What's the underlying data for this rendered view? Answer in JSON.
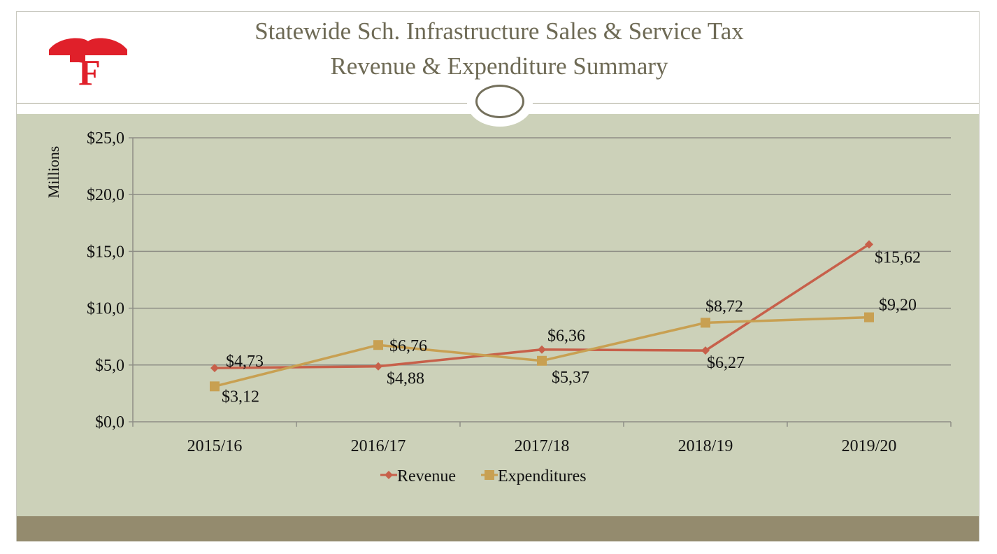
{
  "title": {
    "line1": "Statewide Sch. Infrastructure  Sales & Service Tax",
    "line2": "Revenue & Expenditure Summary"
  },
  "logo": {
    "text": "F"
  },
  "colors": {
    "revenue": "#c7604a",
    "expenditures": "#c8a052",
    "chart_bg": "#ccd1b9",
    "footer": "#948b6e",
    "title": "#6e6a55",
    "logo": "#e0202a"
  },
  "chart_data": {
    "type": "line",
    "title": "Statewide Sch. Infrastructure  Sales & Service Tax Revenue & Expenditure Summary",
    "ylabel": "Millions",
    "xlabel": "",
    "categories": [
      "2015/16",
      "2016/17",
      "2017/18",
      "2018/19",
      "2019/20"
    ],
    "ylim": [
      0,
      25
    ],
    "y_ticks": [
      0,
      5,
      10,
      15,
      20,
      25
    ],
    "y_tick_labels": [
      "$0,0",
      "$5,0",
      "$10,0",
      "$15,0",
      "$20,0",
      "$25,0"
    ],
    "grid": true,
    "legend": "bottom",
    "series": [
      {
        "name": "Revenue",
        "marker": "diamond",
        "values": [
          4.73,
          4.88,
          6.36,
          6.27,
          15.62
        ],
        "labels": [
          "$4,73",
          "$4,88",
          "$6,36",
          "$6,27",
          "$15,62"
        ]
      },
      {
        "name": "Expenditures",
        "marker": "square",
        "values": [
          3.12,
          6.76,
          5.37,
          8.72,
          9.2
        ],
        "labels": [
          "$3,12",
          "$6,76",
          "$5,37",
          "$8,72",
          "$9,20"
        ]
      }
    ]
  }
}
